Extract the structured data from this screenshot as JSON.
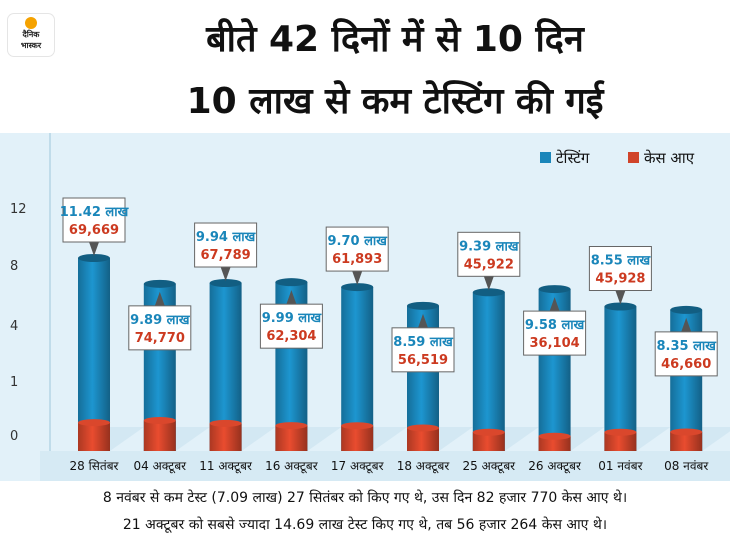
{
  "logo": {
    "line1": "दैनिक",
    "line2": "भास्कर"
  },
  "title": {
    "line1": "बीते 42 दिनों में से 10 दिन",
    "line2": "10 लाख से कम टेस्टिंग की गई"
  },
  "colors": {
    "testing": "#1a86ba",
    "cases": "#d0442a",
    "background": "#e2f1f9",
    "label_testing": "#1a86ba",
    "label_cases": "#cc3a20"
  },
  "chart_data": {
    "type": "bar",
    "stacked": false,
    "categories": [
      "28 सितंबर",
      "04 अक्टूबर",
      "11 अक्टूबर",
      "16 अक्टूबर",
      "17 अक्टूबर",
      "18 अक्टूबर",
      "25 अक्टूबर",
      "26 अक्टूबर",
      "01 नवंबर",
      "08 नवंबर"
    ],
    "series": [
      {
        "name": "टेस्टिंग",
        "values": [
          11.42,
          9.89,
          9.94,
          9.99,
          9.7,
          8.59,
          9.39,
          9.58,
          8.55,
          8.35
        ],
        "labels": [
          "11.42 लाख",
          "9.89 लाख",
          "9.94 लाख",
          "9.99 लाख",
          "9.70 लाख",
          "8.59 लाख",
          "9.39 लाख",
          "9.58 लाख",
          "8.55 लाख",
          "8.35 लाख"
        ]
      },
      {
        "name": "केस आए",
        "values": [
          69669,
          74770,
          67789,
          62304,
          61893,
          56519,
          45922,
          36104,
          45928,
          46660
        ],
        "labels": [
          "69,669",
          "74,770",
          "67,789",
          "62,304",
          "61,893",
          "56,519",
          "45,922",
          "36,104",
          "45,928",
          "46,660"
        ]
      }
    ],
    "y_ticks": [
      "0",
      "1",
      "4",
      "8",
      "12"
    ],
    "callout_position": [
      "above",
      "below",
      "above",
      "below",
      "above",
      "below",
      "above",
      "below",
      "above",
      "below"
    ],
    "legend_position": "top-right"
  },
  "notes": {
    "line1": "8 नवंबर से कम टेस्ट (7.09 लाख) 27 सितंबर को किए गए थे, उस दिन 82 हजार 770 केस आए थे।",
    "line2": "21 अक्टूबर को सबसे ज्यादा 14.69 लाख टेस्ट किए गए थे, तब 56 हजार 264 केस आए थे।"
  }
}
